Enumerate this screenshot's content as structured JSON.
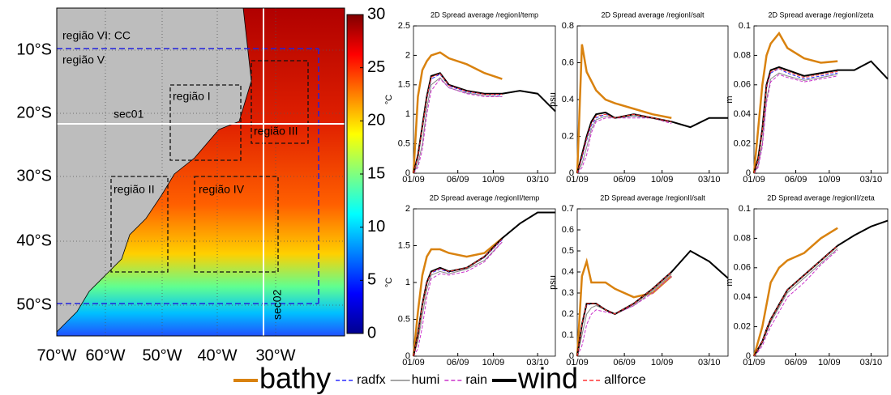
{
  "map": {
    "lat_labels": [
      "10°S",
      "20°S",
      "30°S",
      "40°S",
      "50°S"
    ],
    "lon_labels": [
      "70°W",
      "60°W",
      "50°W",
      "40°W",
      "30°W"
    ],
    "labels": [
      "região VI: CC",
      "região V",
      "região I",
      "sec01",
      "região III",
      "região II",
      "região IV",
      "sec02"
    ],
    "colorbar": {
      "lim": [
        0,
        30
      ],
      "ticks": [
        0,
        5,
        10,
        15,
        20,
        25,
        30
      ]
    }
  },
  "legend": [
    {
      "name": "bathy",
      "color": "#d9820f",
      "dashed": false
    },
    {
      "name": "radfx",
      "color": "#2a2aff",
      "dashed": true
    },
    {
      "name": "humi",
      "color": "#888888",
      "dashed": false
    },
    {
      "name": "rain",
      "color": "#cc33cc",
      "dashed": true
    },
    {
      "name": "wind",
      "color": "#000000",
      "dashed": false
    },
    {
      "name": "allforce",
      "color": "#ff3333",
      "dashed": true
    }
  ],
  "chart_data": [
    {
      "type": "line",
      "title": "2D Spread average /regionI/temp",
      "ylabel": "°C",
      "x": [
        0,
        0.5,
        1,
        1.5,
        2,
        3,
        4,
        6,
        8,
        10,
        12,
        14,
        16
      ],
      "xlim": [
        0,
        16
      ],
      "xticks": [
        {
          "value": 0,
          "label": "01/09"
        },
        {
          "value": 5,
          "label": "06/09"
        },
        {
          "value": 9,
          "label": "10/09"
        },
        {
          "value": 14,
          "label": "03/10"
        }
      ],
      "ylim": [
        0,
        2.5
      ],
      "yticks": [
        0,
        0.5,
        1,
        1.5,
        2,
        2.5
      ],
      "series": [
        {
          "values": [
            0,
            1.3,
            1.75,
            1.9,
            2.0,
            2.05,
            1.95,
            1.85,
            1.7,
            1.6,
            null,
            null,
            null
          ]
        },
        {
          "values": [
            0,
            0.25,
            0.75,
            1.25,
            1.6,
            1.68,
            1.48,
            1.38,
            1.34,
            1.33,
            null,
            null,
            null
          ]
        },
        {
          "values": [
            0,
            0.15,
            0.5,
            1.1,
            1.5,
            1.62,
            1.45,
            1.36,
            1.32,
            1.3,
            null,
            null,
            null
          ]
        },
        {
          "values": [
            0,
            0.1,
            0.4,
            1.0,
            1.4,
            1.6,
            1.45,
            1.35,
            1.3,
            1.3,
            null,
            null,
            null
          ]
        },
        {
          "values": [
            0,
            0.3,
            0.8,
            1.3,
            1.65,
            1.7,
            1.5,
            1.4,
            1.35,
            1.35,
            1.4,
            1.35,
            1.05
          ]
        },
        {
          "values": [
            0,
            0.28,
            0.78,
            1.28,
            1.63,
            1.69,
            1.49,
            1.39,
            1.34,
            1.34,
            null,
            null,
            null
          ]
        }
      ]
    },
    {
      "type": "line",
      "title": "2D Spread average /regionI/salt",
      "ylabel": "psu",
      "x": [
        0,
        0.5,
        1,
        1.5,
        2,
        3,
        4,
        6,
        8,
        10,
        12,
        14,
        16
      ],
      "xlim": [
        0,
        16
      ],
      "xticks": [
        {
          "value": 0,
          "label": "01/09"
        },
        {
          "value": 5,
          "label": "06/09"
        },
        {
          "value": 9,
          "label": "10/09"
        },
        {
          "value": 14,
          "label": "03/10"
        }
      ],
      "ylim": [
        0,
        0.8
      ],
      "yticks": [
        0,
        0.2,
        0.4,
        0.6,
        0.8
      ],
      "series": [
        {
          "values": [
            0,
            0.7,
            0.55,
            0.5,
            0.45,
            0.4,
            0.38,
            0.35,
            0.32,
            0.3,
            null,
            null,
            null
          ]
        },
        {
          "values": [
            0,
            0.08,
            0.18,
            0.26,
            0.3,
            0.32,
            0.3,
            0.31,
            0.3,
            0.28,
            null,
            null,
            null
          ]
        },
        {
          "values": [
            0,
            0.05,
            0.14,
            0.24,
            0.29,
            0.31,
            0.3,
            0.31,
            0.3,
            0.28,
            null,
            null,
            null
          ]
        },
        {
          "values": [
            0,
            0.03,
            0.1,
            0.22,
            0.28,
            0.3,
            0.3,
            0.3,
            0.3,
            0.27,
            null,
            null,
            null
          ]
        },
        {
          "values": [
            0,
            0.1,
            0.2,
            0.28,
            0.32,
            0.33,
            0.3,
            0.32,
            0.3,
            0.28,
            0.25,
            0.3,
            0.3
          ]
        },
        {
          "values": [
            0,
            0.09,
            0.19,
            0.27,
            0.31,
            0.32,
            0.3,
            0.32,
            0.3,
            0.28,
            null,
            null,
            null
          ]
        }
      ]
    },
    {
      "type": "line",
      "title": "2D Spread average /regionI/zeta",
      "ylabel": "m",
      "x": [
        0,
        0.5,
        1,
        1.5,
        2,
        3,
        4,
        6,
        8,
        10,
        12,
        14,
        16
      ],
      "xlim": [
        0,
        16
      ],
      "xticks": [
        {
          "value": 0,
          "label": "01/09"
        },
        {
          "value": 5,
          "label": "06/09"
        },
        {
          "value": 9,
          "label": "10/09"
        },
        {
          "value": 14,
          "label": "03/10"
        }
      ],
      "ylim": [
        0,
        0.1
      ],
      "yticks": [
        0,
        0.02,
        0.04,
        0.06,
        0.08,
        0.1
      ],
      "series": [
        {
          "values": [
            0,
            0.03,
            0.06,
            0.08,
            0.088,
            0.095,
            0.085,
            0.078,
            0.075,
            0.076,
            null,
            null,
            null
          ]
        },
        {
          "values": [
            0,
            0.008,
            0.028,
            0.058,
            0.068,
            0.071,
            0.068,
            0.064,
            0.066,
            0.068,
            null,
            null,
            null
          ]
        },
        {
          "values": [
            0,
            0.005,
            0.02,
            0.05,
            0.064,
            0.068,
            0.066,
            0.063,
            0.065,
            0.067,
            null,
            null,
            null
          ]
        },
        {
          "values": [
            0,
            0.004,
            0.018,
            0.048,
            0.062,
            0.067,
            0.065,
            0.062,
            0.064,
            0.066,
            null,
            null,
            null
          ]
        },
        {
          "values": [
            0,
            0.01,
            0.03,
            0.06,
            0.07,
            0.072,
            0.07,
            0.066,
            0.068,
            0.07,
            0.07,
            0.076,
            0.064
          ]
        },
        {
          "values": [
            0,
            0.009,
            0.029,
            0.059,
            0.069,
            0.071,
            0.069,
            0.065,
            0.067,
            0.069,
            null,
            null,
            null
          ]
        }
      ]
    },
    {
      "type": "line",
      "title": "2D Spread average /regionII/temp",
      "ylabel": "°C",
      "x": [
        0,
        0.5,
        1,
        1.5,
        2,
        3,
        4,
        6,
        8,
        10,
        12,
        14,
        16
      ],
      "xlim": [
        0,
        16
      ],
      "xticks": [
        {
          "value": 0,
          "label": "01/09"
        },
        {
          "value": 5,
          "label": "06/09"
        },
        {
          "value": 9,
          "label": "10/09"
        },
        {
          "value": 14,
          "label": "03/10"
        }
      ],
      "ylim": [
        0,
        2
      ],
      "yticks": [
        0,
        0.5,
        1,
        1.5,
        2
      ],
      "series": [
        {
          "values": [
            0,
            0.6,
            1.1,
            1.35,
            1.45,
            1.45,
            1.4,
            1.35,
            1.4,
            1.6,
            null,
            null,
            null
          ]
        },
        {
          "values": [
            0,
            0.28,
            0.68,
            0.98,
            1.13,
            1.18,
            1.14,
            1.2,
            1.34,
            1.58,
            null,
            null,
            null
          ]
        },
        {
          "values": [
            0,
            0.2,
            0.55,
            0.9,
            1.1,
            1.15,
            1.12,
            1.18,
            1.3,
            1.55,
            null,
            null,
            null
          ]
        },
        {
          "values": [
            0,
            0.1,
            0.4,
            0.8,
            1.05,
            1.12,
            1.1,
            1.15,
            1.28,
            1.55,
            null,
            null,
            null
          ]
        },
        {
          "values": [
            0,
            0.3,
            0.7,
            1.0,
            1.15,
            1.2,
            1.15,
            1.2,
            1.35,
            1.6,
            1.8,
            1.95,
            1.95
          ]
        },
        {
          "values": [
            0,
            0.29,
            0.69,
            0.99,
            1.14,
            1.19,
            1.15,
            1.2,
            1.35,
            1.59,
            null,
            null,
            null
          ]
        }
      ]
    },
    {
      "type": "line",
      "title": "2D Spread average /regionII/salt",
      "ylabel": "psu",
      "x": [
        0,
        0.5,
        1,
        1.5,
        2,
        3,
        4,
        6,
        8,
        10,
        12,
        14,
        16
      ],
      "xlim": [
        0,
        16
      ],
      "xticks": [
        {
          "value": 0,
          "label": "01/09"
        },
        {
          "value": 5,
          "label": "06/09"
        },
        {
          "value": 9,
          "label": "10/09"
        },
        {
          "value": 14,
          "label": "03/10"
        }
      ],
      "ylim": [
        0,
        0.7
      ],
      "yticks": [
        0,
        0.1,
        0.2,
        0.3,
        0.4,
        0.5,
        0.6,
        0.7
      ],
      "series": [
        {
          "values": [
            0,
            0.38,
            0.45,
            0.35,
            0.35,
            0.35,
            0.32,
            0.28,
            0.3,
            0.38,
            null,
            null,
            null
          ]
        },
        {
          "values": [
            0,
            0.14,
            0.24,
            0.25,
            0.25,
            0.22,
            0.2,
            0.25,
            0.32,
            0.4,
            null,
            null,
            null
          ]
        },
        {
          "values": [
            0,
            0.1,
            0.2,
            0.23,
            0.24,
            0.22,
            0.2,
            0.24,
            0.31,
            0.39,
            null,
            null,
            null
          ]
        },
        {
          "values": [
            0,
            0.05,
            0.15,
            0.2,
            0.22,
            0.21,
            0.2,
            0.24,
            0.3,
            0.38,
            null,
            null,
            null
          ]
        },
        {
          "values": [
            0,
            0.15,
            0.25,
            0.25,
            0.25,
            0.22,
            0.2,
            0.25,
            0.32,
            0.4,
            0.5,
            0.45,
            0.37
          ]
        },
        {
          "values": [
            0,
            0.15,
            0.25,
            0.25,
            0.25,
            0.22,
            0.2,
            0.25,
            0.32,
            0.4,
            null,
            null,
            null
          ]
        }
      ]
    },
    {
      "type": "line",
      "title": "2D Spread average /regionII/zeta",
      "ylabel": "m",
      "x": [
        0,
        0.5,
        1,
        1.5,
        2,
        3,
        4,
        6,
        8,
        10,
        12,
        14,
        16
      ],
      "xlim": [
        0,
        16
      ],
      "xticks": [
        {
          "value": 0,
          "label": "01/09"
        },
        {
          "value": 5,
          "label": "06/09"
        },
        {
          "value": 9,
          "label": "10/09"
        },
        {
          "value": 14,
          "label": "03/10"
        }
      ],
      "ylim": [
        0,
        0.1
      ],
      "yticks": [
        0,
        0.02,
        0.04,
        0.06,
        0.08,
        0.1
      ],
      "series": [
        {
          "values": [
            0,
            0.01,
            0.02,
            0.035,
            0.05,
            0.06,
            0.065,
            0.07,
            0.08,
            0.087,
            null,
            null,
            null
          ]
        },
        {
          "values": [
            0,
            0.005,
            0.01,
            0.018,
            0.025,
            0.035,
            0.045,
            0.055,
            0.065,
            0.075,
            null,
            null,
            null
          ]
        },
        {
          "values": [
            0,
            0.004,
            0.009,
            0.016,
            0.023,
            0.033,
            0.043,
            0.053,
            0.063,
            0.073,
            null,
            null,
            null
          ]
        },
        {
          "values": [
            0,
            0.003,
            0.007,
            0.014,
            0.02,
            0.03,
            0.04,
            0.05,
            0.062,
            0.072,
            null,
            null,
            null
          ]
        },
        {
          "values": [
            0,
            0.005,
            0.01,
            0.018,
            0.025,
            0.035,
            0.045,
            0.055,
            0.065,
            0.075,
            0.082,
            0.088,
            0.092
          ]
        },
        {
          "values": [
            0,
            0.005,
            0.01,
            0.018,
            0.025,
            0.035,
            0.045,
            0.055,
            0.065,
            0.075,
            null,
            null,
            null
          ]
        }
      ]
    }
  ]
}
